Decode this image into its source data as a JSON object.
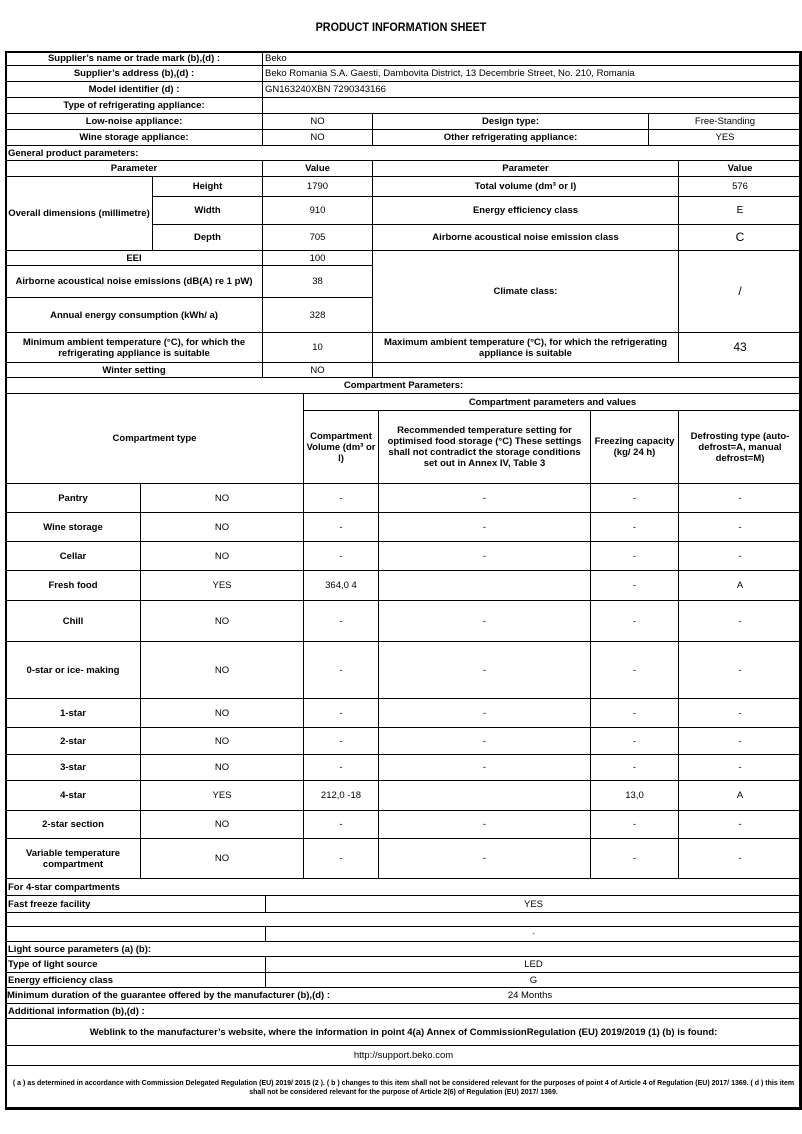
{
  "title": "PRODUCT INFORMATION SHEET",
  "supplier": {
    "name_label": "Supplier’s name or trade mark (b),(d) :",
    "name": "Beko",
    "address_label": "Supplier’s address (b),(d) :",
    "address": "Beko Romania S.A. Gaesti, Dambovita District, 13 Decembrie Street, No. 210, Romania",
    "model_label": "Model identifier (d) :",
    "model": "GN163240XBN 7290343166",
    "type_label": "Type of refrigerating appliance:"
  },
  "type": {
    "low_noise_label": "Low-noise appliance:",
    "low_noise": "NO",
    "design_label": "Design type:",
    "design": "Free-Standing",
    "wine_label": "Wine storage appliance:",
    "wine": "NO",
    "other_label": "Other refrigerating appliance:",
    "other": "YES"
  },
  "general": {
    "heading": "General product parameters:",
    "param_h": "Parameter",
    "value_h": "Value",
    "param_h2": "Parameter",
    "value_h2": "Value",
    "dims_label": "Overall dimensions (millimetre)",
    "height_label": "Height",
    "height": "1790",
    "width_label": "Width",
    "width": "910",
    "depth_label": "Depth",
    "depth": "705",
    "total_volume_label": "Total volume (dm³ or l)",
    "total_volume": "576",
    "ee_label": "Energy efficiency class",
    "ee": "E",
    "noise_class_label": "Airborne acoustical noise emission class",
    "noise_class": "C",
    "eei_label": "EEI",
    "eei": "100",
    "noise_label": "Airborne acoustical noise emissions (dB(A) re 1 pW)",
    "noise": "38",
    "annual_label": "Annual energy consumption (kWh/ a)",
    "annual": "328",
    "climate_label": "Climate class:",
    "climate": "/",
    "min_amb_label": "Minimum ambient temperature (°C), for which the refrigerating appliance is suitable",
    "min_amb": "10",
    "max_amb_label": "Maximum ambient temperature (°C), for which the refrigerating appliance is suitable",
    "max_amb": "43",
    "winter_label": "Winter setting",
    "winter": "NO"
  },
  "compartments": {
    "heading": "Compartment Parameters:",
    "type_h": "Compartment type",
    "group_h": "Compartment parameters and values",
    "volume_h": "Compartment Volume (dm³ or l)",
    "temp_h": "Recommended temperature setting for optimised food storage (°C) These settings shall not contradict the storage conditions set out in Annex IV, Table 3",
    "freezing_h": "Freezing capacity (kg/ 24 h)",
    "defrost_h": "Defrosting type (auto-defrost=A, manual defrost=M)",
    "rows": [
      {
        "name": "Pantry",
        "present": "NO",
        "volume": "-",
        "temp": "-",
        "freezing": "-",
        "defrost": "-"
      },
      {
        "name": "Wine storage",
        "present": "NO",
        "volume": "-",
        "temp": "-",
        "freezing": "-",
        "defrost": "-"
      },
      {
        "name": "Cellar",
        "present": "NO",
        "volume": "-",
        "temp": "-",
        "freezing": "-",
        "defrost": "-"
      },
      {
        "name": "Fresh food",
        "present": "YES",
        "volume": "364,0 4",
        "temp": "",
        "freezing": "-",
        "defrost": "A"
      },
      {
        "name": "Chill",
        "present": "NO",
        "volume": "-",
        "temp": "-",
        "freezing": "-",
        "defrost": "-"
      },
      {
        "name": "0-star or ice- making",
        "present": "NO",
        "volume": "-",
        "temp": "-",
        "freezing": "-",
        "defrost": "-"
      },
      {
        "name": "1-star",
        "present": "NO",
        "volume": "-",
        "temp": "-",
        "freezing": "-",
        "defrost": "-"
      },
      {
        "name": "2-star",
        "present": "NO",
        "volume": "-",
        "temp": "-",
        "freezing": "-",
        "defrost": "-"
      },
      {
        "name": "3-star",
        "present": "NO",
        "volume": "-",
        "temp": "-",
        "freezing": "-",
        "defrost": "-"
      },
      {
        "name": "4-star",
        "present": "YES",
        "volume": "212,0 -18",
        "temp": "",
        "freezing": "13,0",
        "defrost": "A"
      },
      {
        "name": "2-star section",
        "present": "NO",
        "volume": "-",
        "temp": "-",
        "freezing": "-",
        "defrost": "-"
      },
      {
        "name": "Variable temperature compartment",
        "present": "NO",
        "volume": "-",
        "temp": "-",
        "freezing": "-",
        "defrost": "-"
      }
    ]
  },
  "four_star": {
    "heading": "For 4-star compartments",
    "fast_label": "Fast freeze facility",
    "fast": "YES",
    "blank_value": "-"
  },
  "light": {
    "heading": "Light source parameters (a) (b):",
    "type_label": "Type of light source",
    "type": "LED",
    "ee_label": "Energy efficiency class",
    "ee": "G"
  },
  "guarantee_label": "Minimum duration of the guarantee offered by the manufacturer (b),(d) :",
  "guarantee": "24 Months",
  "additional_label": "Additional information (b),(d) :",
  "weblink_label": "Weblink to the manufacturer’s website, where the information in point 4(a) Annex of CommissionRegulation (EU) 2019/2019 (1) (b) is found:",
  "weblink": "http://support.beko.com",
  "footnote": "( a ) as determined in accordance with Commission Delegated Regulation (EU) 2019/ 2015 (2 ). ( b ) changes to this item shall not be considered relevant for the purposes of point 4 of Article 4 of Regulation (EU) 2017/ 1369. ( d ) this item shall not be considered relevant for the purpose of Article 2(6) of Regulation (EU) 2017/ 1369."
}
